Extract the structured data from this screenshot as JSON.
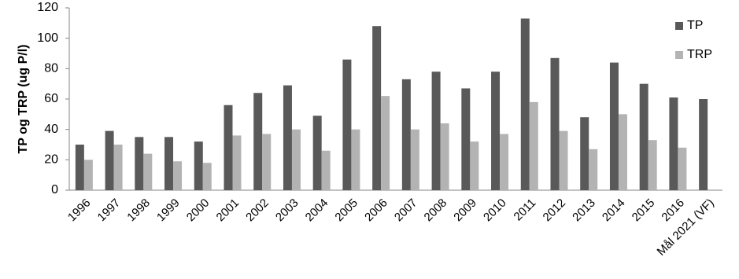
{
  "chart_data": {
    "type": "bar",
    "y_label": "TP og TRP (ug P/l)",
    "categories": [
      "1996",
      "1997",
      "1998",
      "1999",
      "2000",
      "2001",
      "2002",
      "2003",
      "2004",
      "2005",
      "2006",
      "2007",
      "2008",
      "2009",
      "2010",
      "2011",
      "2012",
      "2013",
      "2014",
      "2015",
      "2016",
      "Mål 2021 (VF)"
    ],
    "series": [
      {
        "name": "TP",
        "color": "#595959",
        "values": [
          30,
          39,
          35,
          35,
          32,
          56,
          64,
          69,
          49,
          86,
          108,
          73,
          78,
          67,
          78,
          113,
          87,
          48,
          84,
          70,
          61,
          60
        ]
      },
      {
        "name": "TRP",
        "color": "#b3b3b3",
        "values": [
          20,
          30,
          24,
          19,
          18,
          36,
          37,
          40,
          26,
          40,
          62,
          40,
          44,
          32,
          37,
          58,
          39,
          27,
          50,
          33,
          28,
          null
        ]
      }
    ],
    "ylim": [
      0,
      120
    ],
    "yticks": [
      0,
      20,
      40,
      60,
      80,
      100,
      120
    ],
    "grid": false,
    "legend": "top-right"
  }
}
